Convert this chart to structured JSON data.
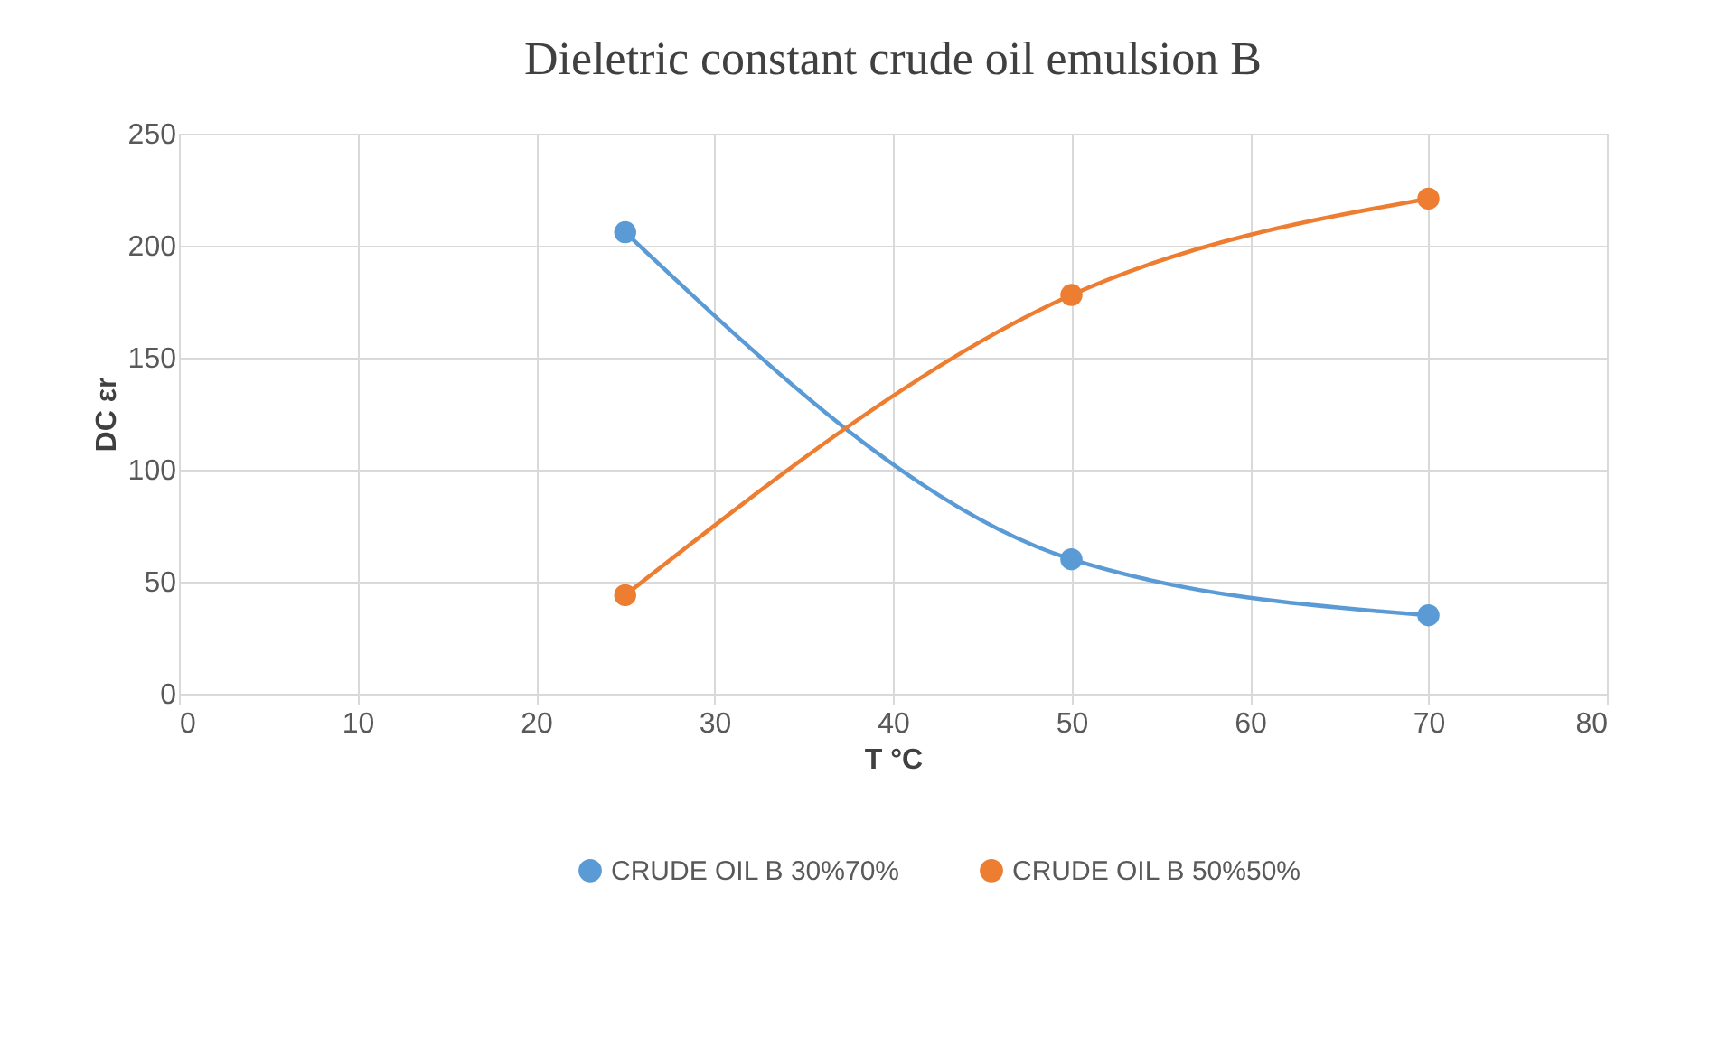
{
  "chart_data": {
    "type": "line",
    "title": "Dieletric constant crude oil emulsion B",
    "xlabel": "T °C",
    "ylabel": "DC  εr",
    "series": [
      {
        "name": "CRUDE OIL B 30%70%",
        "color": "#5b9bd5",
        "x": [
          25,
          50,
          70
        ],
        "values": [
          206,
          60,
          35
        ]
      },
      {
        "name": "CRUDE OIL B 50%50%",
        "color": "#ed7d31",
        "x": [
          25,
          50,
          70
        ],
        "values": [
          44,
          178,
          221
        ]
      }
    ],
    "xlim": [
      0,
      80
    ],
    "xticks": [
      0,
      10,
      20,
      30,
      40,
      50,
      60,
      70,
      80
    ],
    "ylim": [
      0,
      250
    ],
    "yticks": [
      0,
      50,
      100,
      150,
      200,
      250
    ],
    "grid": true,
    "legend": "bottom",
    "marker": "circle",
    "line_style": "solid"
  }
}
